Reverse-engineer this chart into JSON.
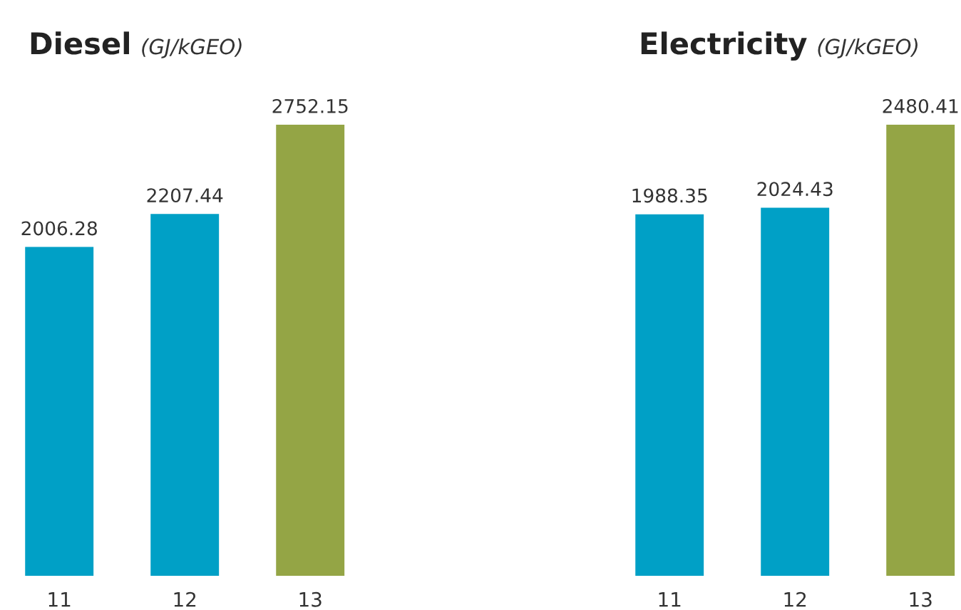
{
  "chart_data": [
    {
      "type": "bar",
      "title": "Diesel",
      "subtitle": "(GJ/kGEO)",
      "categories": [
        "11",
        "12",
        "13"
      ],
      "values": [
        2006.28,
        2207.44,
        2752.15
      ],
      "colors": [
        "#00a0c6",
        "#00a0c6",
        "#94a545"
      ],
      "data_labels": true,
      "grid": false,
      "legend": false
    },
    {
      "type": "bar",
      "title": "Electricity",
      "subtitle": "(GJ/kGEO)",
      "categories": [
        "11",
        "12",
        "13"
      ],
      "values": [
        1988.35,
        2024.43,
        2480.41
      ],
      "colors": [
        "#00a0c6",
        "#00a0c6",
        "#94a545"
      ],
      "data_labels": true,
      "grid": false,
      "legend": false
    }
  ]
}
